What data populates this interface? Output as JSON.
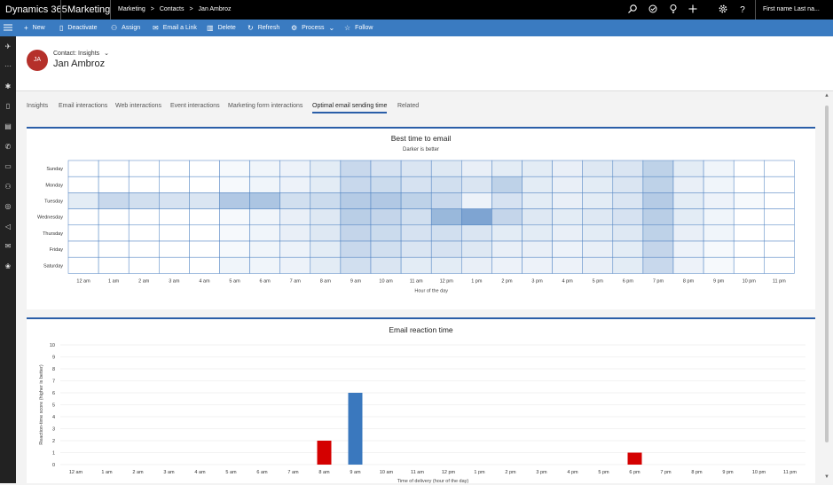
{
  "topbar": {
    "app_name": "Dynamics 365",
    "module": "Marketing",
    "breadcrumb": [
      "Marketing",
      ">",
      "Contacts",
      ">",
      "Jan Ambroz"
    ],
    "user": "First name Last na..."
  },
  "commands": [
    {
      "label": "New",
      "icon": "plus-icon"
    },
    {
      "label": "Deactivate",
      "icon": "document-icon"
    },
    {
      "label": "Assign",
      "icon": "person-icon"
    },
    {
      "label": "Email a Link",
      "icon": "email-icon"
    },
    {
      "label": "Delete",
      "icon": "trash-icon"
    },
    {
      "label": "Refresh",
      "icon": "refresh-icon"
    },
    {
      "label": "Process",
      "icon": "process-icon"
    },
    {
      "label": "Follow",
      "icon": "star-icon"
    }
  ],
  "record": {
    "initials": "JA",
    "form_label": "Contact: Insights",
    "name": "Jan Ambroz",
    "avatar_color": "#b5302a"
  },
  "tabs": [
    {
      "label": "Insights",
      "active": false
    },
    {
      "label": "Email interactions",
      "active": false
    },
    {
      "label": "Web interactions",
      "active": false
    },
    {
      "label": "Event interactions",
      "active": false
    },
    {
      "label": "Marketing form interactions",
      "active": false
    },
    {
      "label": "Optimal email sending time",
      "active": true
    },
    {
      "label": "Related",
      "active": false
    }
  ],
  "colors": {
    "accent": "#2a5ea8",
    "command_bar": "#3a7bc1",
    "bar_blue": "#3a78be",
    "bar_red": "#d40000"
  },
  "chart_data": [
    {
      "type": "heatmap",
      "title": "Best time to email",
      "subtitle": "Darker is better",
      "xlabel": "Hour of the day",
      "ylabel": "",
      "rows": [
        "Sunday",
        "Monday",
        "Tuesday",
        "Wednesday",
        "Thursday",
        "Friday",
        "Saturday"
      ],
      "columns": [
        "12 am",
        "1 am",
        "2 am",
        "3 am",
        "4 am",
        "5 am",
        "6 am",
        "7 am",
        "8 am",
        "9 am",
        "10 am",
        "11 am",
        "12 pm",
        "1 pm",
        "2 pm",
        "3 pm",
        "4 pm",
        "5 pm",
        "6 pm",
        "7 pm",
        "8 pm",
        "9 pm",
        "10 pm",
        "11 pm"
      ],
      "values": [
        [
          0,
          0,
          0,
          0,
          0,
          0.05,
          0.08,
          0.1,
          0.15,
          0.3,
          0.22,
          0.2,
          0.18,
          0.12,
          0.15,
          0.15,
          0.12,
          0.18,
          0.2,
          0.35,
          0.15,
          0.08,
          0,
          0
        ],
        [
          0,
          0,
          0,
          0,
          0,
          0.05,
          0.08,
          0.1,
          0.15,
          0.3,
          0.28,
          0.22,
          0.25,
          0.2,
          0.35,
          0.15,
          0.12,
          0.15,
          0.2,
          0.35,
          0.12,
          0.08,
          0,
          0
        ],
        [
          0.15,
          0.3,
          0.25,
          0.22,
          0.2,
          0.42,
          0.45,
          0.25,
          0.28,
          0.4,
          0.42,
          0.35,
          0.3,
          0.1,
          0.22,
          0.15,
          0.12,
          0.15,
          0.2,
          0.4,
          0.15,
          0.1,
          0.05,
          0
        ],
        [
          0,
          0,
          0,
          0,
          0,
          0.05,
          0.08,
          0.12,
          0.18,
          0.38,
          0.32,
          0.25,
          0.55,
          0.7,
          0.32,
          0.18,
          0.15,
          0.18,
          0.22,
          0.38,
          0.15,
          0.08,
          0,
          0
        ],
        [
          0,
          0,
          0,
          0,
          0,
          0.05,
          0.08,
          0.12,
          0.18,
          0.32,
          0.28,
          0.22,
          0.25,
          0.2,
          0.15,
          0.15,
          0.12,
          0.15,
          0.18,
          0.35,
          0.12,
          0.08,
          0,
          0
        ],
        [
          0,
          0,
          0,
          0,
          0,
          0.05,
          0.08,
          0.1,
          0.15,
          0.3,
          0.25,
          0.2,
          0.22,
          0.18,
          0.12,
          0.12,
          0.1,
          0.12,
          0.15,
          0.32,
          0.1,
          0.05,
          0,
          0
        ],
        [
          0,
          0,
          0,
          0,
          0,
          0.08,
          0.08,
          0.1,
          0.15,
          0.25,
          0.2,
          0.15,
          0.15,
          0.12,
          0.1,
          0.1,
          0.1,
          0.12,
          0.15,
          0.3,
          0.1,
          0.05,
          0,
          0
        ]
      ]
    },
    {
      "type": "bar",
      "title": "Email reaction time",
      "xlabel": "Time of delivery (hour of the day)",
      "ylabel": "Reaction-time score (higher is better)",
      "ylim": [
        0,
        10
      ],
      "yticks": [
        "0",
        "1",
        "2",
        "3",
        "4",
        "5",
        "6",
        "7",
        "8",
        "9",
        "10"
      ],
      "categories": [
        "12 am",
        "1 am",
        "2 am",
        "3 am",
        "4 am",
        "5 am",
        "6 am",
        "7 am",
        "8 am",
        "9 am",
        "10 am",
        "11 am",
        "12 pm",
        "1 pm",
        "2 pm",
        "3 pm",
        "4 pm",
        "5 pm",
        "6 pm",
        "7 pm",
        "8 pm",
        "9 pm",
        "10 pm",
        "11 pm"
      ],
      "values": [
        0,
        0,
        0,
        0,
        0,
        0,
        0,
        0,
        2,
        6,
        0,
        0,
        0,
        0,
        0,
        0,
        0,
        0,
        1,
        0,
        0,
        0,
        0,
        0
      ],
      "bar_colors": [
        "",
        "",
        "",
        "",
        "",
        "",
        "",
        "",
        "#d40000",
        "#3a78be",
        "",
        "",
        "",
        "",
        "",
        "",
        "",
        "",
        "#d40000",
        "",
        "",
        "",
        "",
        ""
      ],
      "grid": true
    }
  ]
}
